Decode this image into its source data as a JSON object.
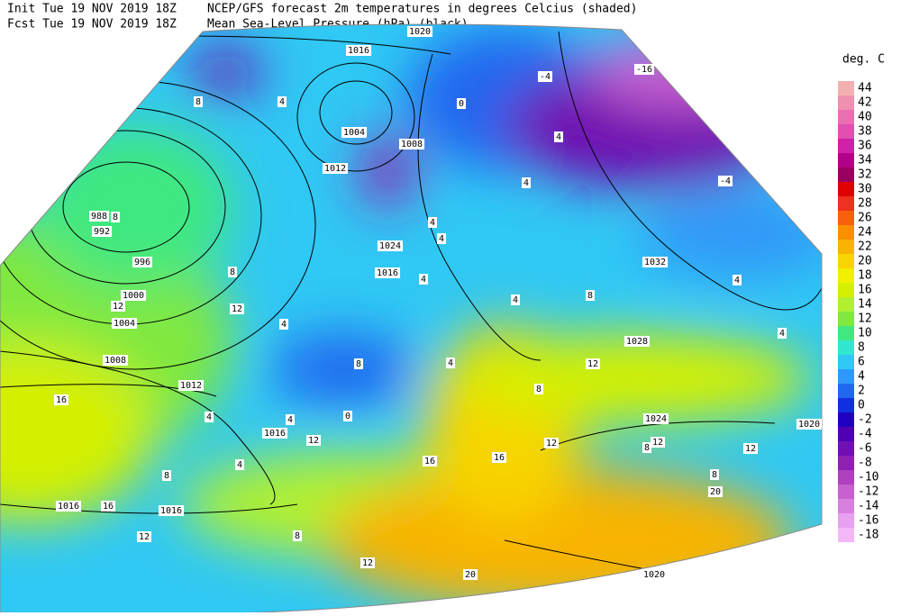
{
  "header": {
    "init": "Init  Tue 19 NOV 2019 18Z",
    "fcst": "Fcst Tue 19 NOV 2019 18Z",
    "line1": "NCEP/GFS forecast 2m temperatures in degrees Celcius (shaded)",
    "line2": "Mean Sea-Level Pressure (hPa) (black)."
  },
  "legend": {
    "title": "deg. C",
    "labels": [
      "44",
      "42",
      "40",
      "38",
      "36",
      "34",
      "32",
      "30",
      "28",
      "26",
      "24",
      "22",
      "20",
      "18",
      "16",
      "14",
      "12",
      "10",
      "8",
      "6",
      "4",
      "2",
      "0",
      "-2",
      "-4",
      "-6",
      "-8",
      "-10",
      "-12",
      "-14",
      "-16",
      "-18"
    ],
    "colors": [
      "#f4b0b0",
      "#f090b0",
      "#e870b0",
      "#e050b0",
      "#d020a8",
      "#b00088",
      "#980060",
      "#e00000",
      "#f03020",
      "#f86010",
      "#f89000",
      "#f8b400",
      "#f8d400",
      "#f0f000",
      "#d4f000",
      "#b0f030",
      "#80e840",
      "#40e880",
      "#30e8d0",
      "#30c8f4",
      "#3098f8",
      "#2068f0",
      "#1030e0",
      "#2000c0",
      "#5000b0",
      "#7010b0",
      "#9020b0",
      "#b040c0",
      "#c860d0",
      "#d880e0",
      "#e8a0f0",
      "#f4b8f8"
    ]
  },
  "map": {
    "isobar_labels": [
      "1020",
      "1016",
      "1004",
      "1008",
      "1012",
      "988",
      "992",
      "996",
      "1000",
      "1004",
      "1008",
      "1012",
      "1016",
      "1016",
      "1016",
      "1032",
      "1028",
      "1024",
      "1020",
      "1020",
      "1024",
      "1016"
    ],
    "temperature_labels": [
      "8",
      "4",
      "8",
      "12",
      "12",
      "16",
      "8",
      "4",
      "4",
      "4",
      "4",
      "4",
      "4",
      "0",
      "-4",
      "-16",
      "-4",
      "4",
      "8",
      "4",
      "4",
      "12",
      "4",
      "8",
      "12",
      "8",
      "12",
      "12",
      "8",
      "20",
      "16",
      "16",
      "12",
      "4",
      "8",
      "16",
      "12",
      "8",
      "12",
      "20",
      "4",
      "0",
      "8",
      "4"
    ]
  }
}
